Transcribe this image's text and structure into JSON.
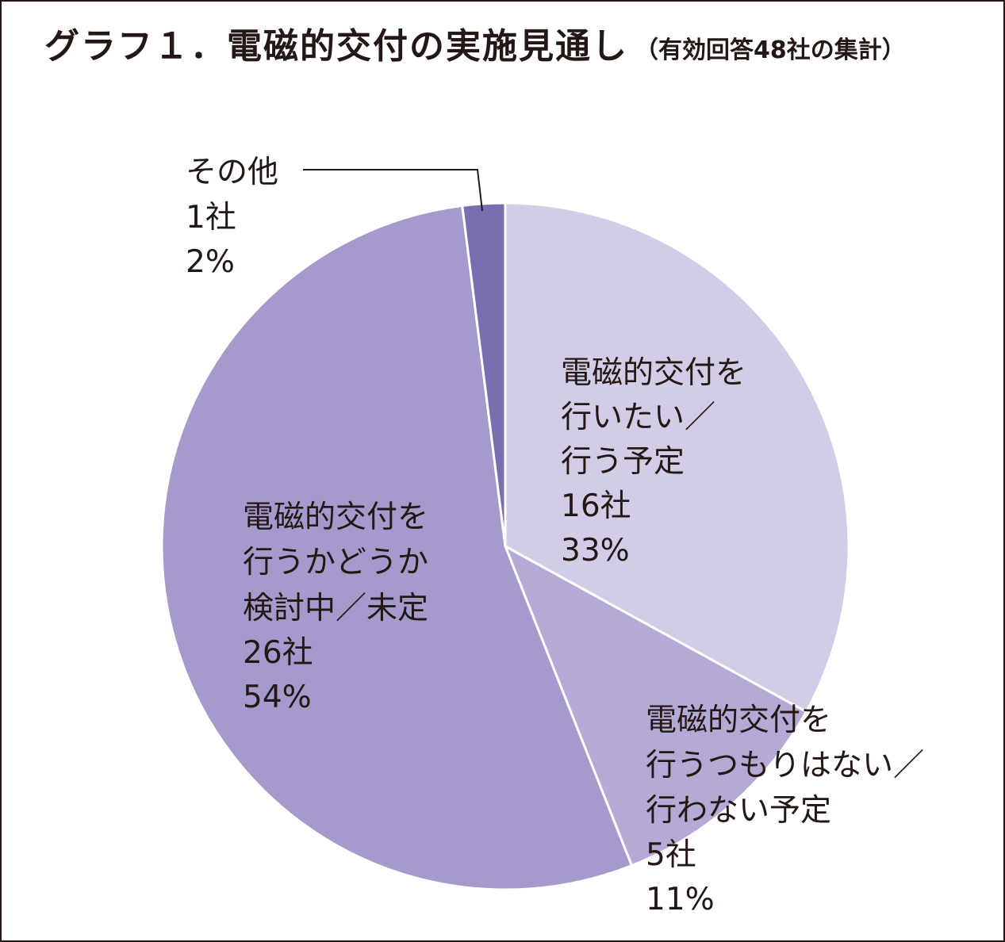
{
  "title": {
    "main": "グラフ１．電磁的交付の実施見通し",
    "sub": "（有効回答48社の集計）"
  },
  "chart_data": {
    "type": "pie",
    "start_angle_deg": 0,
    "direction": "clockwise",
    "slices": [
      {
        "label_lines": [
          "電磁的交付を",
          "行いたい／",
          "行う予定"
        ],
        "count": "16社",
        "percent": "33%",
        "value": 33,
        "color": "#d3cce6"
      },
      {
        "label_lines": [
          "電磁的交付を",
          "行うつもりはない／",
          "行わない予定"
        ],
        "count": "5社",
        "percent": "11%",
        "value": 11,
        "color": "#b5aad6"
      },
      {
        "label_lines": [
          "電磁的交付を",
          "行うかどうか",
          "検討中／未定"
        ],
        "count": "26社",
        "percent": "54%",
        "value": 54,
        "color": "#a59acb"
      },
      {
        "label_lines": [
          "その他"
        ],
        "count": "1社",
        "percent": "2%",
        "value": 2,
        "color": "#7a6db0"
      }
    ]
  }
}
